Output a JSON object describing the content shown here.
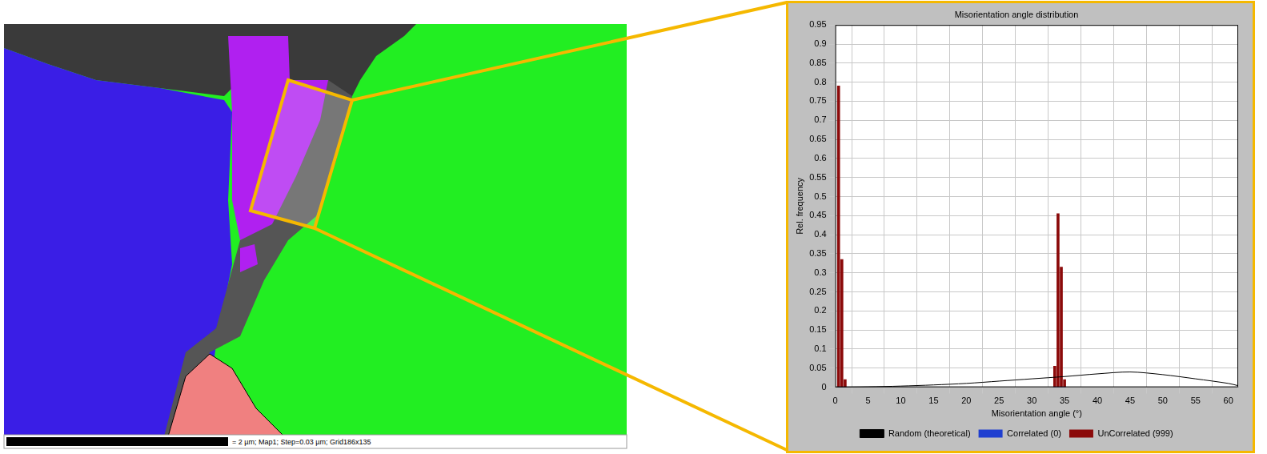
{
  "map": {
    "scale_bar_label": "= 2 µm; Map1; Step=0.03 µm; Grid186x135"
  },
  "chart_data": {
    "type": "bar",
    "title": "Misorientation angle distribution",
    "x_label": "Misorientation angle (°)",
    "y_label": "Rel. frequency",
    "x": [
      0.5,
      1,
      1.5,
      33.5,
      34,
      34.5,
      35
    ],
    "series": [
      {
        "name": "Correlated (0)",
        "color": "#1f3fd0",
        "values": [
          0,
          0,
          0,
          0,
          0,
          0,
          0
        ]
      },
      {
        "name": "UnCorrelated (999)",
        "color": "#8b0a0a",
        "values": [
          0.79,
          0.335,
          0.02,
          0.055,
          0.455,
          0.315,
          0.02
        ]
      },
      {
        "name": "Random (theoretical)",
        "type": "line",
        "color": "#000000",
        "x": [
          0,
          5,
          10,
          15,
          20,
          25,
          30,
          35,
          40,
          45,
          50,
          55,
          60,
          61.5
        ],
        "values": [
          0,
          0.001,
          0.003,
          0.006,
          0.01,
          0.016,
          0.022,
          0.028,
          0.035,
          0.04,
          0.033,
          0.022,
          0.01,
          0.004
        ]
      }
    ],
    "xlim": [
      0,
      61.5
    ],
    "xticks": [
      0,
      5,
      10,
      15,
      20,
      25,
      30,
      35,
      40,
      45,
      50,
      55,
      60
    ],
    "ylim": [
      0,
      0.95
    ],
    "yticks": [
      0,
      0.05,
      0.1,
      0.15,
      0.2,
      0.25,
      0.3,
      0.35,
      0.4,
      0.45,
      0.5,
      0.55,
      0.6,
      0.65,
      0.7,
      0.75,
      0.8,
      0.85,
      0.9,
      0.95
    ],
    "grid": true,
    "legend": "bottom"
  }
}
